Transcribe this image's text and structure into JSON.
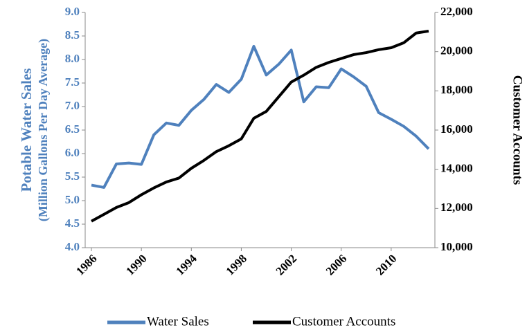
{
  "chart_data": {
    "type": "line",
    "ylabel": [
      "Potable Water Sales",
      "(Million Gallons Per Day Average)"
    ],
    "y2label": "Customer Accounts",
    "x": [
      1986,
      1987,
      1988,
      1989,
      1990,
      1991,
      1992,
      1993,
      1994,
      1995,
      1996,
      1997,
      1998,
      1999,
      2000,
      2001,
      2002,
      2003,
      2004,
      2005,
      2006,
      2007,
      2008,
      2009,
      2010,
      2011,
      2012,
      2013
    ],
    "xlim": [
      1985.5,
      2013.5
    ],
    "xticks": [
      1986,
      1990,
      1994,
      1998,
      2002,
      2006,
      2010
    ],
    "ylim": [
      4,
      9
    ],
    "yticks": [
      {
        "value": 4,
        "label": "4.0"
      },
      {
        "value": 4.5,
        "label": "4.5"
      },
      {
        "value": 5,
        "label": "5.0"
      },
      {
        "value": 5.5,
        "label": "5.5"
      },
      {
        "value": 6,
        "label": "6.0"
      },
      {
        "value": 6.5,
        "label": "6.5"
      },
      {
        "value": 7,
        "label": "7.0"
      },
      {
        "value": 7.5,
        "label": "7.5"
      },
      {
        "value": 8,
        "label": "8.0"
      },
      {
        "value": 8.5,
        "label": "8.5"
      },
      {
        "value": 9,
        "label": "9.0"
      }
    ],
    "y2lim": [
      10000,
      22000
    ],
    "y2ticks": [
      {
        "value": 10000,
        "label": "10,000"
      },
      {
        "value": 12000,
        "label": "12,000"
      },
      {
        "value": 14000,
        "label": "14,000"
      },
      {
        "value": 16000,
        "label": "16,000"
      },
      {
        "value": 18000,
        "label": "18,000"
      },
      {
        "value": 20000,
        "label": "20,000"
      },
      {
        "value": 22000,
        "label": "22,000"
      }
    ],
    "legend": "bottom",
    "series": [
      {
        "name": "Water Sales",
        "color": "#4F81BD",
        "values": [
          5.33,
          5.28,
          5.78,
          5.8,
          5.77,
          6.4,
          6.65,
          6.6,
          6.92,
          7.15,
          7.47,
          7.3,
          7.58,
          8.28,
          7.67,
          7.9,
          8.2,
          7.1,
          7.42,
          7.4,
          7.8,
          7.63,
          7.43,
          6.87,
          6.73,
          6.58,
          6.37,
          6.1
        ]
      },
      {
        "name": "Customer Accounts",
        "color": "#000000",
        "axis": "y2",
        "values": [
          11350,
          11700,
          12050,
          12300,
          12700,
          13050,
          13350,
          13550,
          14050,
          14450,
          14900,
          15200,
          15550,
          16600,
          16950,
          17700,
          18450,
          18800,
          19200,
          19450,
          19650,
          19850,
          19950,
          20100,
          20200,
          20450,
          20950,
          21050
        ]
      }
    ]
  }
}
